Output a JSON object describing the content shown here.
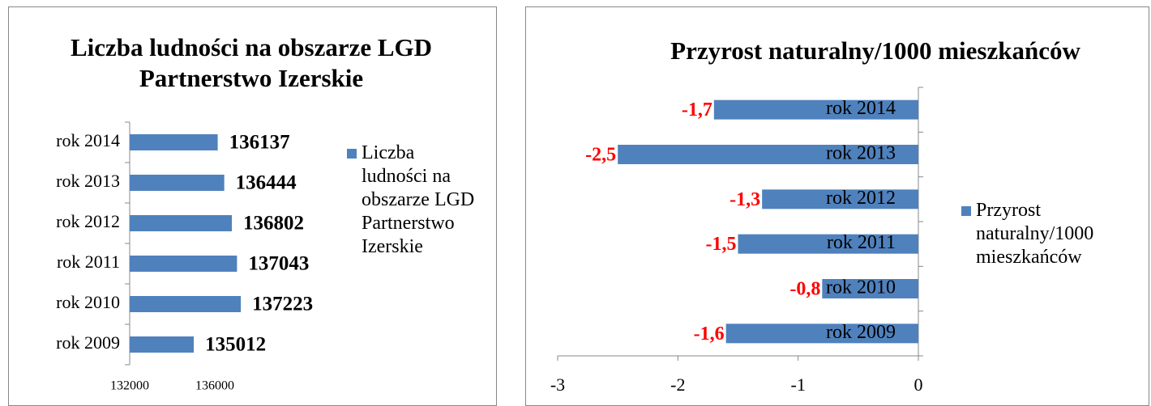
{
  "chart_data": [
    {
      "type": "bar",
      "orientation": "horizontal",
      "title": "Liczba ludności na obszarze LGD Partnerstwo Izerskie",
      "categories": [
        "rok 2014",
        "rok 2013",
        "rok 2012",
        "rok 2011",
        "rok 2010",
        "rok 2009"
      ],
      "series": [
        {
          "name": "Liczba ludności na obszarze LGD Partnerstwo Izerskie",
          "color": "#4f81bd",
          "values": [
            136137,
            136444,
            136802,
            137043,
            137223,
            135012
          ]
        }
      ],
      "xlim": [
        132000,
        138000
      ],
      "xticks": [
        132000,
        136000
      ],
      "label_color": "#000000",
      "grid": false,
      "legend": "right"
    },
    {
      "type": "bar",
      "orientation": "horizontal",
      "title": "Przyrost naturalny/1000 mieszkańców",
      "categories": [
        "rok 2014",
        "rok 2013",
        "rok 2012",
        "rok 2011",
        "rok 2010",
        "rok 2009"
      ],
      "series": [
        {
          "name": "Przyrost naturalny/1000 mieszkańców",
          "color": "#4f81bd",
          "values": [
            -1.7,
            -2.5,
            -1.3,
            -1.5,
            -0.8,
            -1.6
          ],
          "value_labels": [
            "-1,7",
            "-2,5",
            "-1,3",
            "-1,5",
            "-0,8",
            "-1,6"
          ]
        }
      ],
      "xlim": [
        -3,
        0
      ],
      "xticks": [
        -3,
        -2,
        -1,
        0
      ],
      "label_color": "#ff0000",
      "grid": false,
      "legend": "right"
    }
  ]
}
